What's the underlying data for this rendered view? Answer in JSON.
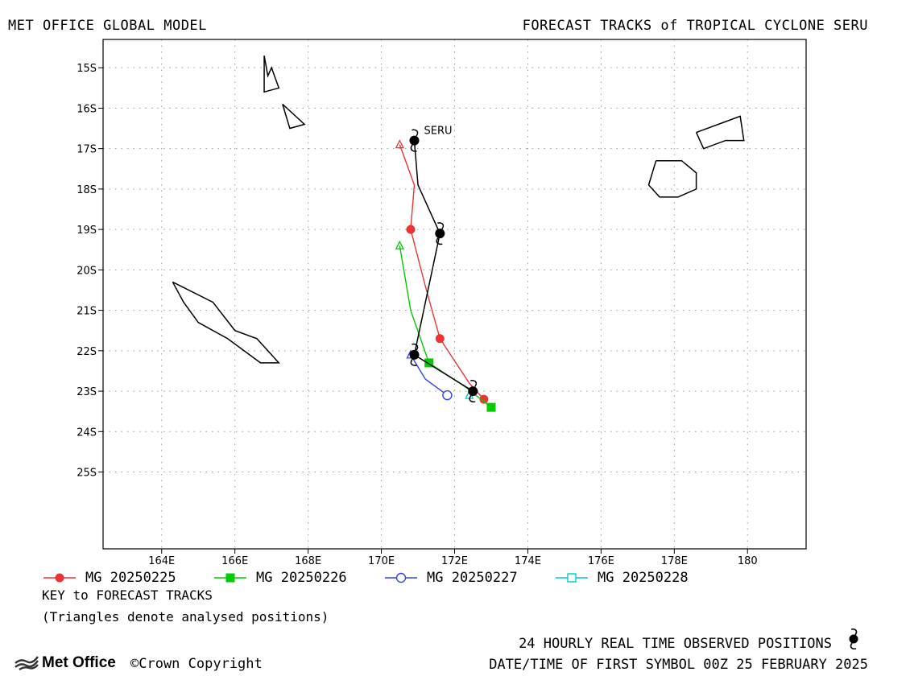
{
  "header": {
    "left_title": "MET OFFICE GLOBAL MODEL",
    "right_title": "FORECAST TRACKS of TROPICAL CYCLONE SERU"
  },
  "chart_data": {
    "type": "line",
    "xlim": [
      162.4,
      181.6
    ],
    "ylim": [
      -26.9,
      -14.3
    ],
    "x_ticks": [
      164,
      166,
      168,
      170,
      172,
      174,
      176,
      178,
      180
    ],
    "x_tick_labels": [
      "164E",
      "166E",
      "168E",
      "170E",
      "172E",
      "174E",
      "176E",
      "178E",
      "180"
    ],
    "y_ticks": [
      -15,
      -16,
      -17,
      -18,
      -19,
      -20,
      -21,
      -22,
      -23,
      -24,
      -25
    ],
    "y_tick_labels": [
      "15S",
      "16S",
      "17S",
      "18S",
      "19S",
      "20S",
      "21S",
      "22S",
      "23S",
      "24S",
      "25S"
    ],
    "grid": true,
    "storm_label": "SERU",
    "observed": {
      "color": "#000000",
      "path": [
        [
          170.9,
          -16.8
        ],
        [
          171.0,
          -17.9
        ],
        [
          171.6,
          -19.1
        ],
        [
          170.9,
          -22.1
        ],
        [
          172.5,
          -23.0
        ]
      ],
      "symbols": [
        [
          170.9,
          -16.8
        ],
        [
          171.6,
          -19.1
        ],
        [
          170.9,
          -22.1
        ],
        [
          172.5,
          -23.0
        ]
      ]
    },
    "series": [
      {
        "name": "MG 20250225",
        "color": "#ee3333",
        "marker": "filled-circle",
        "analysed": [
          170.5,
          -16.9
        ],
        "path": [
          [
            170.5,
            -16.9
          ],
          [
            170.9,
            -17.9
          ],
          [
            170.8,
            -19.0
          ],
          [
            171.2,
            -20.4
          ],
          [
            171.6,
            -21.7
          ],
          [
            172.4,
            -22.8
          ],
          [
            172.8,
            -23.2
          ]
        ],
        "points": [
          [
            170.8,
            -19.0
          ],
          [
            171.6,
            -21.7
          ],
          [
            172.8,
            -23.2
          ]
        ]
      },
      {
        "name": "MG 20250226",
        "color": "#00cc00",
        "marker": "filled-square",
        "analysed": [
          170.5,
          -19.4
        ],
        "path": [
          [
            170.5,
            -19.4
          ],
          [
            170.8,
            -21.0
          ],
          [
            171.3,
            -22.3
          ],
          [
            172.3,
            -22.9
          ],
          [
            173.0,
            -23.4
          ]
        ],
        "points": [
          [
            171.3,
            -22.3
          ],
          [
            173.0,
            -23.4
          ]
        ]
      },
      {
        "name": "MG 20250227",
        "color": "#3344ee",
        "marker": "open-circle",
        "analysed": [
          170.8,
          -22.1
        ],
        "path": [
          [
            170.8,
            -22.1
          ],
          [
            171.2,
            -22.7
          ],
          [
            171.8,
            -23.1
          ]
        ],
        "points": [
          [
            171.8,
            -23.1
          ]
        ]
      },
      {
        "name": "MG 20250228",
        "color": "#00cccc",
        "marker": "open-square",
        "analysed": [
          172.4,
          -23.1
        ],
        "path": [],
        "points": []
      }
    ],
    "coastlines": [
      [
        [
          166.8,
          -14.7
        ],
        [
          166.8,
          -15.6
        ],
        [
          167.2,
          -15.5
        ],
        [
          167.0,
          -15.0
        ],
        [
          166.9,
          -15.2
        ],
        [
          166.8,
          -14.7
        ]
      ],
      [
        [
          167.3,
          -15.9
        ],
        [
          167.9,
          -16.4
        ],
        [
          167.5,
          -16.5
        ],
        [
          167.3,
          -15.9
        ]
      ],
      [
        [
          164.3,
          -20.3
        ],
        [
          165.4,
          -20.8
        ],
        [
          166.0,
          -21.5
        ],
        [
          166.6,
          -21.7
        ],
        [
          167.2,
          -22.3
        ],
        [
          166.7,
          -22.3
        ],
        [
          165.8,
          -21.7
        ],
        [
          165.0,
          -21.3
        ],
        [
          164.6,
          -20.8
        ],
        [
          164.3,
          -20.3
        ]
      ],
      [
        [
          177.5,
          -17.3
        ],
        [
          178.2,
          -17.3
        ],
        [
          178.6,
          -17.6
        ],
        [
          178.6,
          -18.0
        ],
        [
          178.1,
          -18.2
        ],
        [
          177.6,
          -18.2
        ],
        [
          177.3,
          -17.9
        ],
        [
          177.5,
          -17.3
        ]
      ],
      [
        [
          178.6,
          -16.6
        ],
        [
          179.2,
          -16.4
        ],
        [
          179.8,
          -16.2
        ],
        [
          179.9,
          -16.8
        ],
        [
          179.4,
          -16.8
        ],
        [
          178.8,
          -17.0
        ],
        [
          178.6,
          -16.6
        ]
      ]
    ]
  },
  "legend": {
    "key_title": "KEY to FORECAST TRACKS",
    "key_note": "(Triangles denote analysed positions)"
  },
  "footer": {
    "observed_text": "24 HOURLY REAL TIME OBSERVED POSITIONS",
    "first_symbol_text": "DATE/TIME OF FIRST SYMBOL 00Z 25 FEBRUARY 2025",
    "brand": "Met Office",
    "copyright": "©Crown Copyright"
  }
}
